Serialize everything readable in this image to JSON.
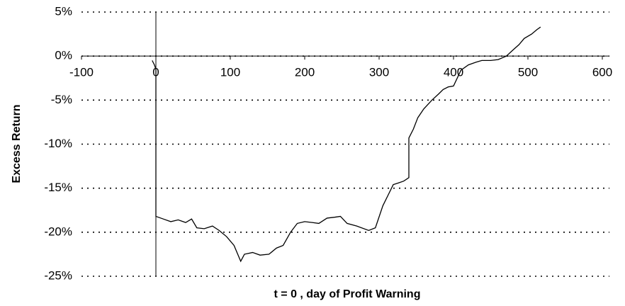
{
  "chart_data": {
    "type": "line",
    "x_label": "t = 0 , day of Profit Warning",
    "y_label": "Excess Return",
    "x": [
      -5,
      -2,
      0,
      0,
      10,
      20,
      30,
      40,
      48,
      55,
      65,
      76,
      85,
      95,
      105,
      114,
      119,
      130,
      140,
      152,
      162,
      171,
      181,
      190,
      200,
      210,
      219,
      230,
      240,
      248,
      257,
      270,
      286,
      295,
      305,
      312,
      319,
      326,
      333,
      340,
      340,
      346,
      352,
      360,
      371,
      380,
      386,
      393,
      400,
      410,
      420,
      430,
      438,
      450,
      460,
      471,
      480,
      488,
      495,
      505,
      512,
      517
    ],
    "series": [
      {
        "name": "Excess Return",
        "color": "#000000",
        "values": [
          -0.5,
          -1,
          -1.5,
          -18.2,
          -18.5,
          -18.8,
          -18.6,
          -18.9,
          -18.5,
          -19.5,
          -19.6,
          -19.3,
          -19.8,
          -20.5,
          -21.5,
          -23.3,
          -22.5,
          -22.3,
          -22.6,
          -22.5,
          -21.8,
          -21.5,
          -20,
          -19,
          -18.8,
          -18.9,
          -19,
          -18.4,
          -18.3,
          -18.2,
          -19,
          -19.3,
          -19.8,
          -19.5,
          -17,
          -15.8,
          -14.6,
          -14.4,
          -14.2,
          -13.8,
          -9.3,
          -8.3,
          -7,
          -6,
          -5,
          -4.3,
          -3.8,
          -3.5,
          -3.4,
          -1.6,
          -1,
          -0.7,
          -0.5,
          -0.5,
          -0.4,
          0,
          0.7,
          1.3,
          2,
          2.5,
          3,
          3.3
        ]
      }
    ],
    "xlim": [
      -100,
      600
    ],
    "ylim": [
      -25,
      5
    ],
    "xticks": [
      -100,
      0,
      100,
      200,
      300,
      400,
      500,
      600
    ],
    "yticks": [
      {
        "value": 5,
        "label": "5%"
      },
      {
        "value": 0,
        "label": "0%"
      },
      {
        "value": -5,
        "label": "-5%"
      },
      {
        "value": -10,
        "label": "-10%"
      },
      {
        "value": -15,
        "label": "-15%"
      },
      {
        "value": -20,
        "label": "-20%"
      },
      {
        "value": -25,
        "label": "-25%"
      }
    ],
    "grid": true
  }
}
